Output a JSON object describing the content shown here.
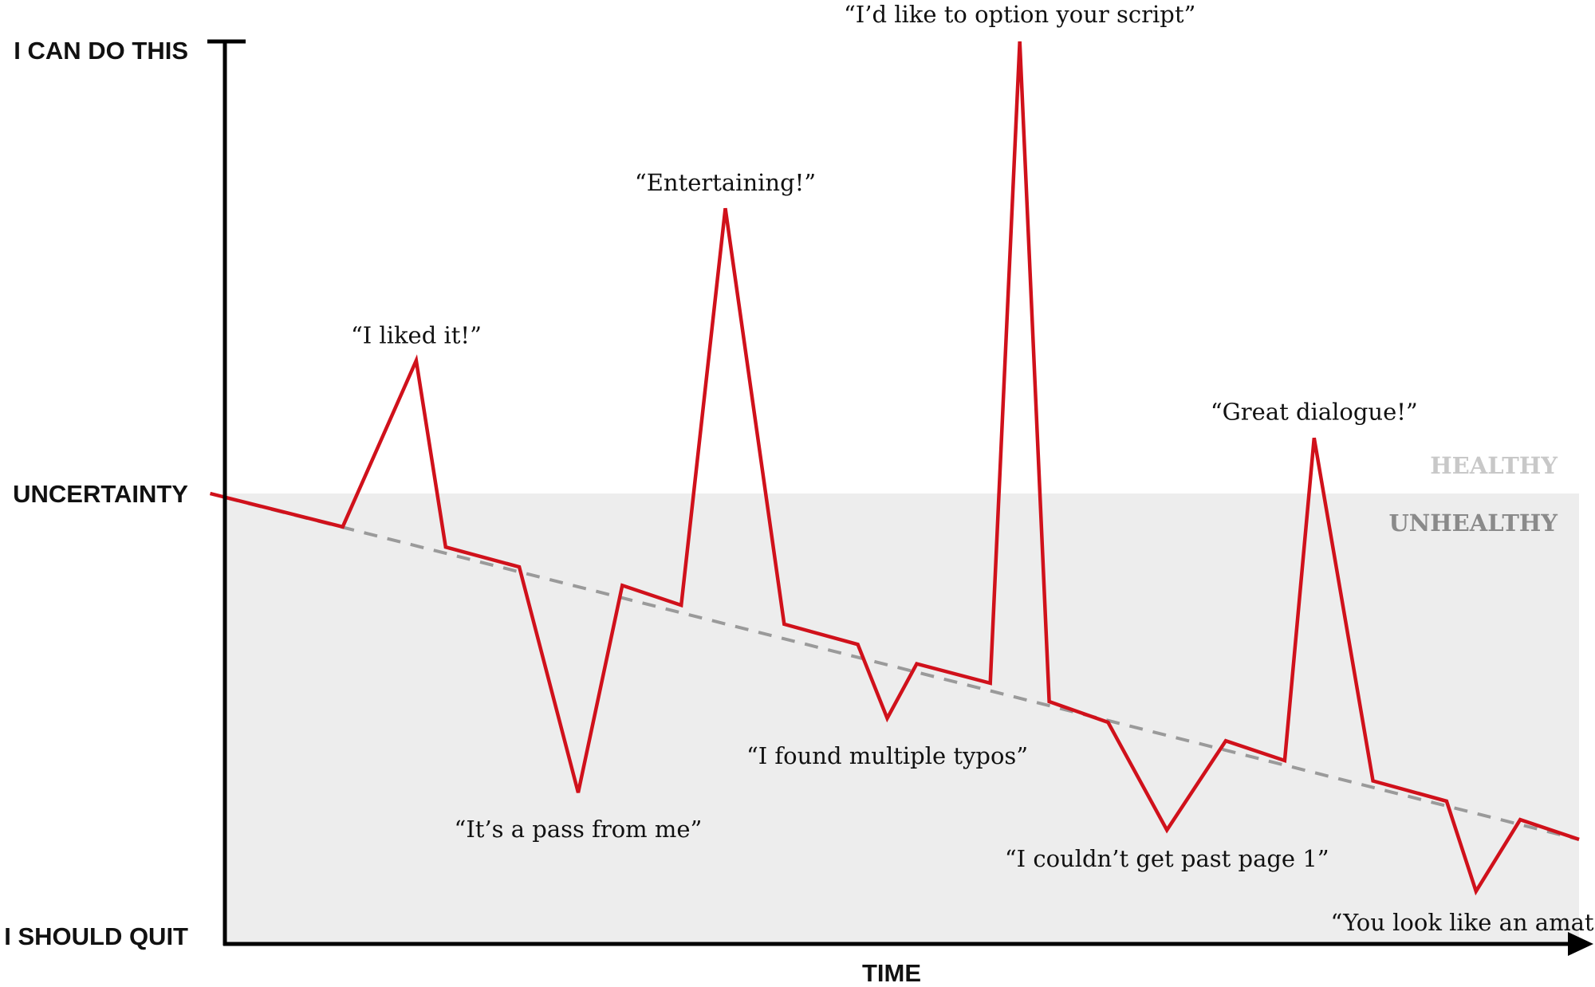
{
  "chart_data": {
    "type": "line",
    "title": "",
    "xlabel": "TIME",
    "y_tick_labels": [
      "I CAN DO THIS",
      "UNCERTAINTY",
      "I SHOULD QUIT"
    ],
    "zones": {
      "upper": "HEALTHY",
      "lower": "UNHEALTHY"
    },
    "colors": {
      "line": "#d0111b",
      "trend": "#9a9a9a",
      "unhealthy_fill": "#ededed",
      "axis": "#000000",
      "healthy_label": "#c8c8c8",
      "unhealthy_label": "#8a8a8a"
    },
    "series": [
      {
        "points": [
          [
            -1,
            0.0
          ],
          [
            8,
            -0.074
          ],
          [
            13,
            0.294
          ],
          [
            15,
            -0.119
          ],
          [
            20,
            -0.163
          ],
          [
            24,
            -0.664
          ],
          [
            27,
            -0.204
          ],
          [
            31,
            -0.248
          ],
          [
            34,
            0.631
          ],
          [
            38,
            -0.29
          ],
          [
            43,
            -0.335
          ],
          [
            45,
            -0.499
          ],
          [
            47,
            -0.378
          ],
          [
            52,
            -0.421
          ],
          [
            54,
            1.0
          ],
          [
            56,
            -0.462
          ],
          [
            60,
            -0.508
          ],
          [
            64,
            -0.747
          ],
          [
            68,
            -0.549
          ],
          [
            72,
            -0.593
          ],
          [
            74,
            0.123
          ],
          [
            78,
            -0.638
          ],
          [
            83,
            -0.683
          ],
          [
            85,
            -0.883
          ],
          [
            88,
            -0.724
          ],
          [
            92,
            -0.768
          ]
        ]
      }
    ],
    "trend": {
      "style": "dashed",
      "points": [
        [
          0,
          -0.009
        ],
        [
          92,
          -0.768
        ]
      ]
    },
    "annotations": [
      {
        "text": "“I liked it!”",
        "x": 13,
        "y": 0.294
      },
      {
        "text": "“It’s a pass from me”",
        "x": 24,
        "y": -0.664
      },
      {
        "text": "“Entertaining!”",
        "x": 34,
        "y": 0.631
      },
      {
        "text": "“I found multiple typos”",
        "x": 45,
        "y": -0.499
      },
      {
        "text": "“I’d like to option your script”",
        "x": 54,
        "y": 1.0
      },
      {
        "text": "“I couldn’t get past page 1”",
        "x": 64,
        "y": -0.747
      },
      {
        "text": "“Great dialogue!”",
        "x": 74,
        "y": 0.123
      },
      {
        "text": "“You look like an amateur”",
        "x": 85,
        "y": -0.883
      }
    ],
    "xlim": [
      0,
      92
    ],
    "ylim": [
      -1,
      1
    ],
    "grid": false
  }
}
